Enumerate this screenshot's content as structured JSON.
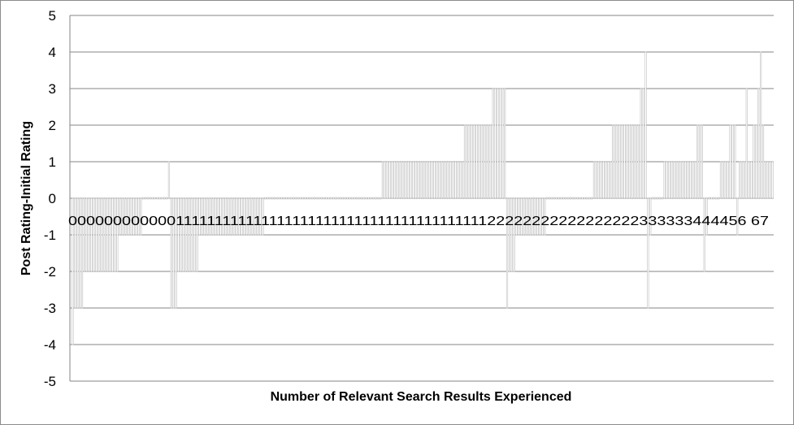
{
  "chart_data": {
    "type": "bar",
    "title": "",
    "xlabel": "Number of Relevant Search Results Experienced",
    "ylabel": "Post Rating-Initial Rating",
    "ylim": [
      -5,
      5
    ],
    "yticks": [
      5,
      4,
      3,
      2,
      1,
      0,
      -1,
      -2,
      -3,
      -4,
      -5
    ],
    "grid": true,
    "legend": "none",
    "bar_color": "#bfbfbf",
    "category_labels_text": "000000000000111111111111111111111111111111111111111122222222222222222333333444456 67",
    "segments": [
      {
        "category": "0",
        "values": [
          -4,
          -3,
          -3,
          -3,
          -3,
          -2,
          -2,
          -2,
          -2,
          -2,
          -2,
          -2,
          -2,
          -2,
          -2,
          -2,
          -2,
          -2,
          -2,
          -2,
          -1,
          -1,
          -1,
          -1,
          -1,
          -1,
          -1,
          -1,
          -1,
          -1
        ]
      },
      {
        "category": "0",
        "values": [
          0,
          0,
          0,
          0,
          0,
          0,
          0,
          0,
          0,
          0,
          0,
          1
        ]
      },
      {
        "category": "1",
        "values": [
          -3,
          -3,
          -3,
          -2,
          -2,
          -2,
          -2,
          -2,
          -2,
          -2,
          -2,
          -2,
          -1,
          -1,
          -1,
          -1,
          -1,
          -1,
          -1,
          -1,
          -1,
          -1,
          -1,
          -1,
          -1,
          -1,
          -1,
          -1,
          -1,
          -1,
          -1,
          -1,
          -1,
          -1,
          -1,
          -1,
          -1,
          -1,
          -1,
          -1
        ]
      },
      {
        "category": "1",
        "values": [
          0,
          0,
          0,
          0,
          0,
          0,
          0,
          0,
          0,
          0,
          0,
          0,
          0,
          0,
          0,
          0,
          0,
          0,
          0,
          0,
          0,
          0,
          0,
          0,
          0,
          0,
          0,
          0,
          0,
          0,
          0,
          0,
          0,
          0,
          0,
          0,
          0,
          0,
          0,
          0,
          0,
          0,
          0,
          0,
          0,
          0,
          0,
          0,
          0,
          0
        ]
      },
      {
        "category": "1",
        "values": [
          1,
          1,
          1,
          1,
          1,
          1,
          1,
          1,
          1,
          1,
          1,
          1,
          1,
          1,
          1,
          1,
          1,
          1,
          1,
          1,
          1,
          1,
          1,
          1,
          1,
          1,
          1,
          1,
          1,
          1,
          1,
          1,
          1,
          1,
          1,
          2,
          2,
          2,
          2,
          2,
          2,
          2,
          2,
          2,
          2,
          2,
          2,
          3,
          3,
          3,
          3,
          3,
          3
        ]
      },
      {
        "category": "2",
        "values": [
          -3,
          -2,
          -2,
          -2,
          -1,
          -1,
          -1,
          -1,
          -1,
          -1,
          -1,
          -1,
          -1,
          -1,
          -1,
          -1,
          -1,
          0,
          0,
          0,
          0,
          0,
          0,
          0,
          0,
          0,
          0,
          0,
          0,
          0,
          0,
          0,
          0,
          0,
          0,
          0,
          0,
          1,
          1,
          1,
          1,
          1,
          1,
          1,
          1,
          2,
          2,
          2,
          2,
          2,
          2,
          2,
          2,
          2,
          2,
          2,
          2,
          3,
          3,
          4
        ]
      },
      {
        "category": "3",
        "values": [
          -3,
          -1,
          0,
          0,
          0,
          0,
          0,
          1,
          1,
          1,
          1,
          1,
          1,
          1,
          1,
          1,
          1,
          1,
          1,
          1,
          1,
          2,
          2,
          2
        ]
      },
      {
        "category": "4",
        "values": [
          -2,
          -1,
          0,
          0,
          0,
          0,
          0,
          1,
          1,
          1,
          1,
          2,
          2,
          2
        ]
      },
      {
        "category": "5",
        "values": [
          -1,
          1,
          1,
          1,
          3,
          1,
          1
        ]
      },
      {
        "category": "6",
        "values": [
          2,
          2,
          3,
          4,
          2
        ]
      },
      {
        "category": "7",
        "values": [
          1,
          1,
          1,
          1
        ]
      }
    ]
  }
}
